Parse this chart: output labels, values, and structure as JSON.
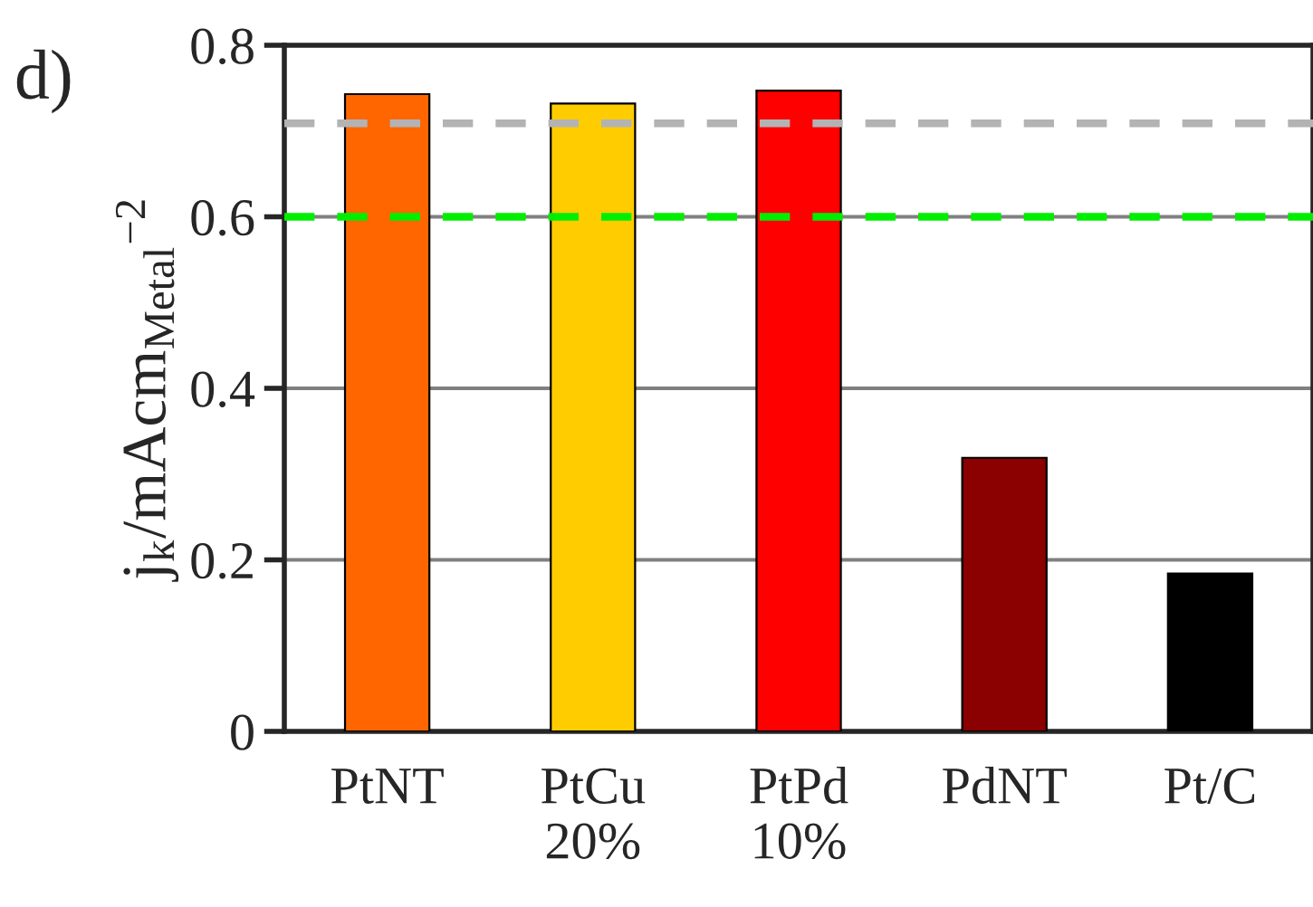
{
  "chart_data": {
    "type": "bar",
    "ylabel": "j$_{k}$/mAcm$_{Metal}$$^{−2}$",
    "annotations": [
      "d)"
    ],
    "categories": [
      "PtNT",
      "PtCu\n20%",
      "PtPd\n10%",
      "PdNT",
      "Pt/C"
    ],
    "values": [
      0.743,
      0.732,
      0.747,
      0.319,
      0.184
    ],
    "colors": [
      "#ff6600",
      "#ffcc00",
      "#ff0000",
      "#8b0000",
      "#000000"
    ],
    "ylim": [
      0,
      0.8
    ],
    "yticks": [
      {
        "value": 0,
        "label": "0"
      },
      0.2,
      0.4,
      0.6,
      0.8
    ],
    "grid": "y",
    "ref_lines": [
      {
        "axis": "y",
        "value": 0.709,
        "color": "#b3b3b3",
        "line_style": "dashed"
      },
      {
        "axis": "y",
        "value": 0.6,
        "color": "#00ee00",
        "line_style": "dashed"
      }
    ]
  }
}
